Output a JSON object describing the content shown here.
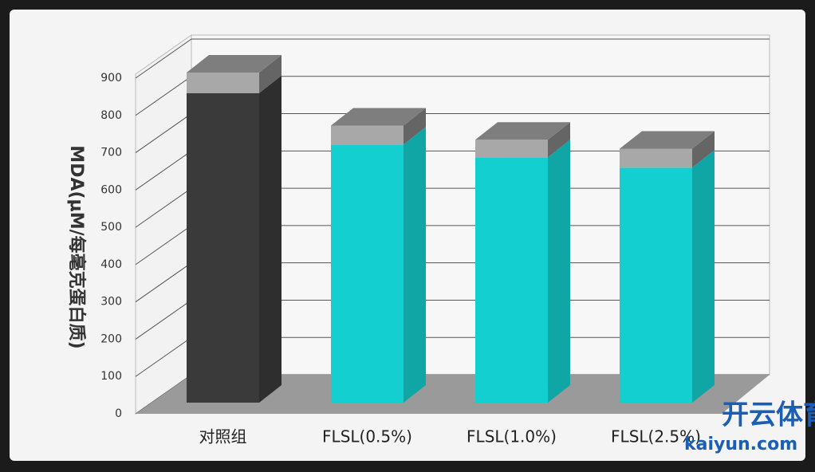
{
  "chart_data": {
    "type": "bar3d",
    "y_label": "MDA(μM/每毫克蛋白质)",
    "categories": [
      "对照组",
      "FLSL(0.5%)",
      "FLSL(1.0%)",
      "FLSL(2.5%)"
    ],
    "values": [
      830,
      692,
      658,
      630
    ],
    "errors": [
      55,
      51,
      47,
      51
    ],
    "colors": [
      "#3a3a3a",
      "#14cfcf",
      "#14cfcf",
      "#14cfcf"
    ],
    "error_color": "#a8a8a8",
    "ylim": [
      0,
      900
    ],
    "yticks": [
      0,
      100,
      200,
      300,
      400,
      500,
      600,
      700,
      800,
      900
    ],
    "grid": true
  },
  "watermark": {
    "title": "开云体育",
    "url": "kaiyun.com"
  }
}
